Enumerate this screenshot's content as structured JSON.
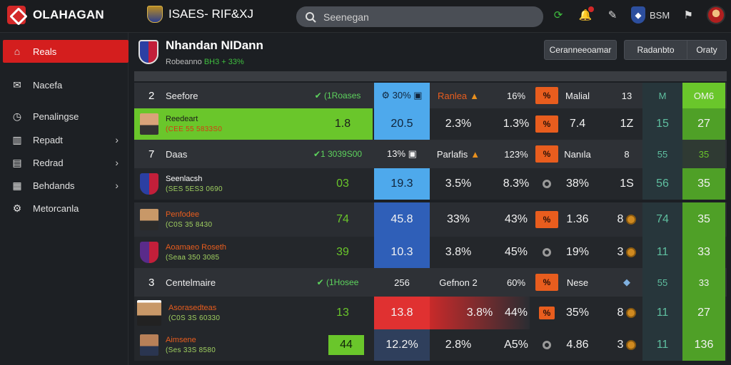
{
  "app": {
    "title": "OLAHAGAN"
  },
  "match": {
    "title": "ISAES- RIF&XJ"
  },
  "search": {
    "placeholder": "Seenegan"
  },
  "top": {
    "label_bsm": "BSM"
  },
  "sidebar": {
    "items": [
      {
        "label": "Reals",
        "icon": "home-icon",
        "active": true
      },
      {
        "label": "Nacefa",
        "icon": "envelope-icon"
      },
      {
        "label": "Penalingse",
        "icon": "clock-icon"
      },
      {
        "label": "Repadt",
        "icon": "chart-icon",
        "chevron": true
      },
      {
        "label": "Redrad",
        "icon": "clipboard-icon",
        "chevron": true
      },
      {
        "label": "Behdands",
        "icon": "grid-icon",
        "chevron": true
      },
      {
        "label": "Metorcanla",
        "icon": "settings-icon"
      }
    ]
  },
  "team": {
    "name": "Nhandan NIDann",
    "sub_prefix": "Robeanno",
    "sub_value": "BH3 + 33%",
    "buttons": {
      "left": "Ceranneeoamar",
      "mid": "Radanbto",
      "right": "Oraty"
    }
  },
  "table": {
    "sections": [
      {
        "rank": "2",
        "label": "Seefore",
        "stat": "✔ (1Roases",
        "c1": "⚙ 30% ▣",
        "c2": "Ranlea",
        "c3": "16%",
        "c4": "Malial",
        "c5": "13",
        "c6": "М",
        "c7": "ОМ6"
      },
      {
        "rank": "7",
        "label": "Daas",
        "stat": "✔1 3039S00",
        "c1": "13% ▣",
        "c2": "Parlafis",
        "c3": "123%",
        "c4": "Nanıla",
        "c5": "8",
        "c6": "55",
        "c7": "35"
      },
      {
        "rank": "3",
        "label": "Centelmaire",
        "stat": "✔ (1Hosee",
        "c1": "256",
        "c2": "Gefnon 2",
        "c3": "60%",
        "c4": "Nese",
        "c5": "",
        "c6": "55",
        "c7": "33"
      }
    ],
    "players": [
      {
        "name": "Reedeart",
        "meta": "(CEE 55 5833S0",
        "v1": "1.8",
        "v2": "20.5",
        "v3": "2.3%",
        "v4": "1.3%",
        "v5": "7.4",
        "v6": "1Z",
        "v7": "15",
        "v8": "27"
      },
      {
        "name": "Seenlacsh",
        "meta": "(SES 5ES3 0690",
        "v1": "03",
        "v2": "19.3",
        "v3": "3.5%",
        "v4": "8.3%",
        "v5": "38%",
        "v6": "1S",
        "v7": "56",
        "v8": "35"
      },
      {
        "name": "Penfodee",
        "meta": "(C0S 35 8430",
        "v1": "74",
        "v2": "45.8",
        "v3": "33%",
        "v4": "43%",
        "v5": "1.36",
        "v6": "8",
        "v7": "74",
        "v8": "35"
      },
      {
        "name": "Aoamaeo Roseth",
        "meta": "(Seaa 350 3085",
        "v1": "39",
        "v2": "10.3",
        "v3": "3.8%",
        "v4": "45%",
        "v5": "19%",
        "v6": "3",
        "v7": "11",
        "v8": "33"
      },
      {
        "name": "Asorasedteas",
        "meta": "(C0S 3S 60330",
        "v1": "13",
        "v2": "13.8",
        "v3": "3.8%",
        "v4": "44%",
        "v5": "35%",
        "v6": "8",
        "v7": "11",
        "v8": "27"
      },
      {
        "name": "Aimsene",
        "meta": "(Ses 33S 8580",
        "v1": "44",
        "v2": "12.2%",
        "v3": "2.8%",
        "v4": "A5%",
        "v5": "4.86",
        "v6": "3",
        "v7": "11",
        "v8": "136"
      }
    ]
  }
}
